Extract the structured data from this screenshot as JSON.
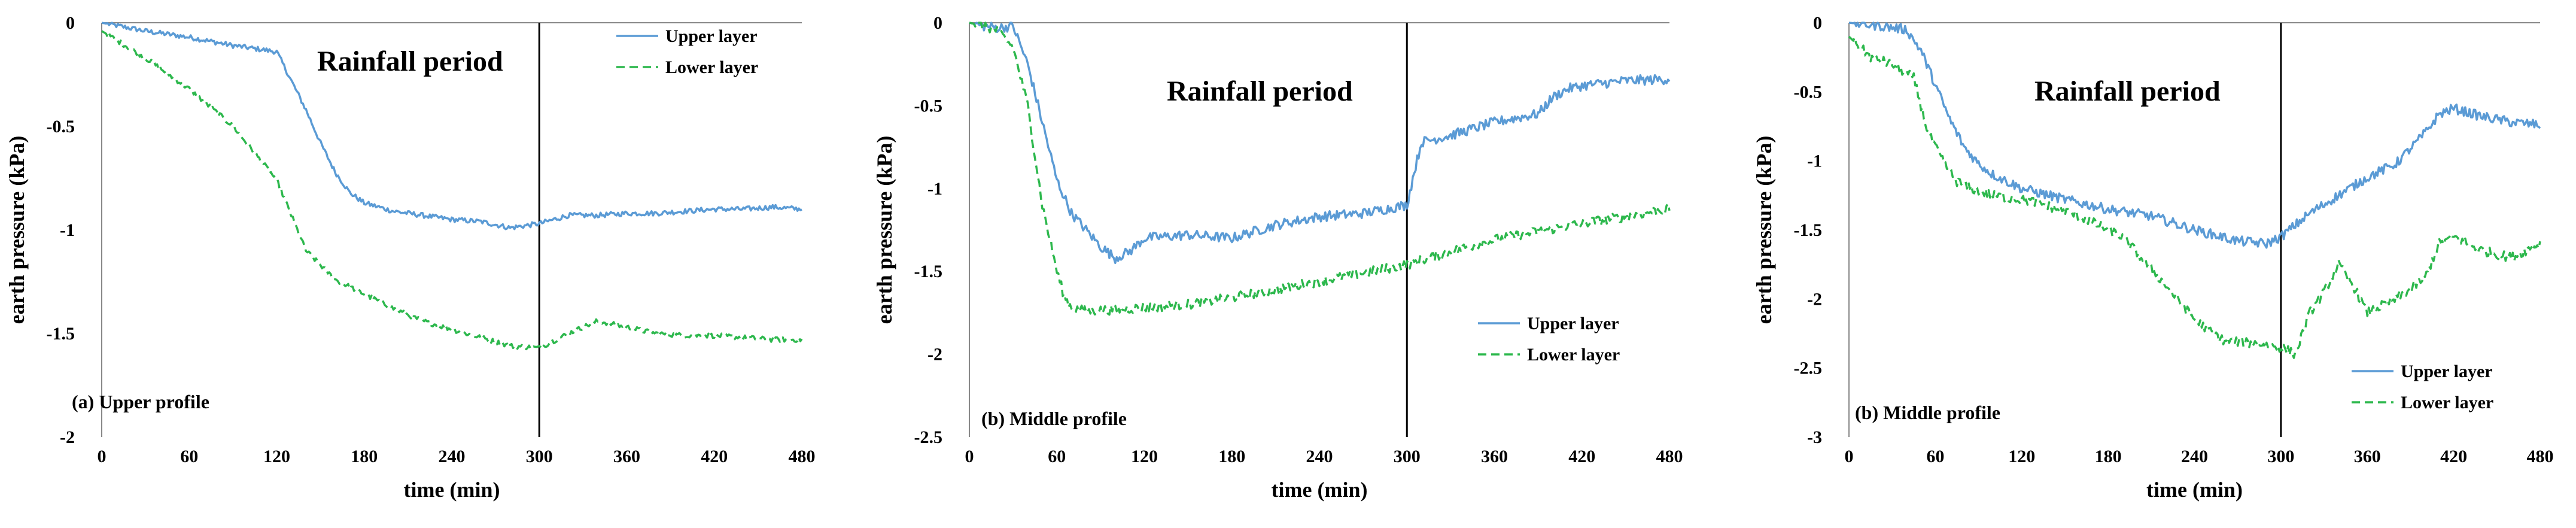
{
  "chart_data": [
    {
      "type": "line",
      "panel_label": "(a)  Upper profile",
      "annotation": "Rainfall period",
      "xlabel": "time (min)",
      "ylabel": "earth pressure (kPa)",
      "xlim": [
        0,
        480
      ],
      "ylim": [
        -2,
        0
      ],
      "xticks": [
        0,
        60,
        120,
        180,
        240,
        300,
        360,
        420,
        480
      ],
      "yticks": [
        0,
        -0.5,
        -1,
        -1.5,
        -2
      ],
      "ytick_labels": [
        "0",
        "-0.5",
        "-1",
        "-1.5",
        "-2"
      ],
      "vline_x": 300,
      "legend_position": "top-right",
      "noise": 0.012,
      "series": [
        {
          "name": "Upper layer",
          "color": "#5b9bd5",
          "dash": "solid",
          "x": [
            0,
            30,
            60,
            90,
            120,
            130,
            140,
            150,
            160,
            170,
            180,
            200,
            220,
            240,
            260,
            280,
            300,
            320,
            340,
            360,
            380,
            400,
            420,
            440,
            460,
            480
          ],
          "y": [
            0,
            -0.04,
            -0.07,
            -0.11,
            -0.14,
            -0.28,
            -0.42,
            -0.58,
            -0.72,
            -0.82,
            -0.87,
            -0.91,
            -0.93,
            -0.95,
            -0.96,
            -0.99,
            -0.97,
            -0.93,
            -0.93,
            -0.92,
            -0.92,
            -0.91,
            -0.9,
            -0.9,
            -0.89,
            -0.9
          ]
        },
        {
          "name": "Lower layer",
          "color": "#2db84d",
          "dash": "14,8",
          "x": [
            0,
            30,
            60,
            90,
            120,
            140,
            160,
            180,
            200,
            220,
            240,
            260,
            280,
            300,
            320,
            340,
            360,
            380,
            400,
            420,
            440,
            460,
            480
          ],
          "y": [
            -0.04,
            -0.17,
            -0.32,
            -0.5,
            -0.76,
            -1.1,
            -1.24,
            -1.31,
            -1.38,
            -1.44,
            -1.48,
            -1.52,
            -1.56,
            -1.57,
            -1.5,
            -1.44,
            -1.47,
            -1.5,
            -1.51,
            -1.51,
            -1.52,
            -1.53,
            -1.53
          ]
        }
      ]
    },
    {
      "type": "line",
      "panel_label": "(b)  Middle profile",
      "annotation": "Rainfall period",
      "xlabel": "time (min)",
      "ylabel": "earth pressure (kPa)",
      "xlim": [
        0,
        480
      ],
      "ylim": [
        -2.5,
        0
      ],
      "xticks": [
        0,
        60,
        120,
        180,
        240,
        300,
        360,
        420,
        480
      ],
      "yticks": [
        0,
        -0.5,
        -1,
        -1.5,
        -2,
        -2.5
      ],
      "ytick_labels": [
        "0",
        "-0.5",
        "-1",
        "-1.5",
        "-2",
        "-2.5"
      ],
      "vline_x": 300,
      "legend_position": "bottom-right",
      "noise": 0.03,
      "series": [
        {
          "name": "Upper layer",
          "color": "#5b9bd5",
          "dash": "solid",
          "x": [
            0,
            10,
            20,
            30,
            40,
            50,
            60,
            70,
            80,
            90,
            100,
            110,
            120,
            150,
            180,
            210,
            240,
            270,
            300,
            305,
            310,
            330,
            360,
            390,
            400,
            410,
            420,
            450,
            480
          ],
          "y": [
            0,
            -0.02,
            -0.03,
            -0.02,
            -0.25,
            -0.6,
            -0.95,
            -1.15,
            -1.25,
            -1.35,
            -1.42,
            -1.38,
            -1.3,
            -1.28,
            -1.3,
            -1.22,
            -1.17,
            -1.15,
            -1.1,
            -0.9,
            -0.72,
            -0.68,
            -0.6,
            -0.55,
            -0.45,
            -0.4,
            -0.38,
            -0.35,
            -0.34
          ]
        },
        {
          "name": "Lower layer",
          "color": "#2db84d",
          "dash": "14,8",
          "x": [
            0,
            10,
            20,
            30,
            40,
            50,
            55,
            60,
            65,
            70,
            80,
            100,
            120,
            150,
            180,
            210,
            240,
            270,
            300,
            330,
            360,
            390,
            420,
            450,
            480
          ],
          "y": [
            0,
            -0.02,
            -0.05,
            -0.15,
            -0.5,
            -1.1,
            -1.3,
            -1.5,
            -1.65,
            -1.72,
            -1.74,
            -1.73,
            -1.72,
            -1.7,
            -1.66,
            -1.61,
            -1.56,
            -1.51,
            -1.46,
            -1.38,
            -1.31,
            -1.26,
            -1.21,
            -1.17,
            -1.12
          ]
        }
      ]
    },
    {
      "type": "line",
      "panel_label": "(b)  Middle profile",
      "annotation": "Rainfall period",
      "xlabel": "time (min)",
      "ylabel": "earth pressure (kPa)",
      "xlim": [
        0,
        480
      ],
      "ylim": [
        -3,
        0
      ],
      "xticks": [
        0,
        60,
        120,
        180,
        240,
        300,
        360,
        420,
        480
      ],
      "yticks": [
        0,
        -0.5,
        -1,
        -1.5,
        -2,
        -2.5,
        -3
      ],
      "ytick_labels": [
        "0",
        "-0.5",
        "-1",
        "-1.5",
        "-2",
        "-2.5",
        "-3"
      ],
      "vline_x": 300,
      "legend_position": "bottom-right",
      "noise": 0.035,
      "series": [
        {
          "name": "Upper layer",
          "color": "#5b9bd5",
          "dash": "solid",
          "x": [
            0,
            20,
            40,
            50,
            60,
            70,
            80,
            90,
            100,
            120,
            150,
            180,
            210,
            240,
            270,
            290,
            300,
            320,
            340,
            360,
            380,
            400,
            410,
            420,
            440,
            460,
            480
          ],
          "y": [
            0,
            -0.02,
            -0.05,
            -0.2,
            -0.45,
            -0.7,
            -0.9,
            -1.02,
            -1.1,
            -1.2,
            -1.28,
            -1.35,
            -1.4,
            -1.5,
            -1.58,
            -1.6,
            -1.55,
            -1.38,
            -1.25,
            -1.12,
            -1.02,
            -0.8,
            -0.66,
            -0.62,
            -0.68,
            -0.72,
            -0.74
          ]
        },
        {
          "name": "Lower layer",
          "color": "#2db84d",
          "dash": "14,8",
          "x": [
            0,
            15,
            30,
            45,
            55,
            65,
            75,
            85,
            100,
            130,
            160,
            190,
            220,
            240,
            260,
            280,
            300,
            310,
            320,
            330,
            340,
            350,
            360,
            380,
            400,
            410,
            420,
            440,
            460,
            480
          ],
          "y": [
            -0.1,
            -0.25,
            -0.3,
            -0.4,
            -0.8,
            -1.0,
            -1.15,
            -1.2,
            -1.25,
            -1.3,
            -1.4,
            -1.55,
            -1.9,
            -2.15,
            -2.3,
            -2.32,
            -2.35,
            -2.4,
            -2.1,
            -1.95,
            -1.75,
            -1.9,
            -2.1,
            -2.0,
            -1.85,
            -1.6,
            -1.55,
            -1.65,
            -1.7,
            -1.6
          ]
        }
      ]
    }
  ]
}
